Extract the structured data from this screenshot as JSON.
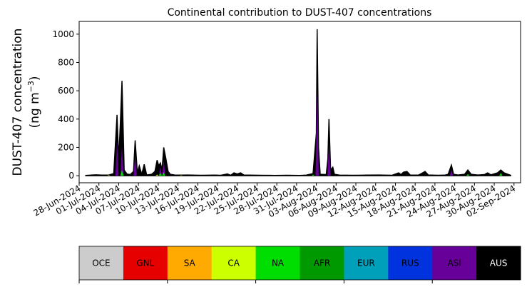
{
  "chart_data": {
    "type": "area",
    "title": "Continental contribution to DUST-407 concentrations",
    "ylabel_line1": "DUST-407 concentration",
    "ylabel_line2_prefix": "(ng m",
    "ylabel_line2_sup": "−3",
    "ylabel_line2_suffix": ")",
    "ylim": [
      -50,
      1090
    ],
    "yticks": [
      0,
      200,
      400,
      600,
      800,
      1000
    ],
    "xlim": [
      "2024-06-28",
      "2024-09-03"
    ],
    "xtick_labels": [
      "28-Jun-2024",
      "01-Jul-2024",
      "04-Jul-2024",
      "07-Jul-2024",
      "10-Jul-2024",
      "13-Jul-2024",
      "16-Jul-2024",
      "19-Jul-2024",
      "22-Jul-2024",
      "25-Jul-2024",
      "28-Jul-2024",
      "31-Jul-2024",
      "03-Aug-2024",
      "06-Aug-2024",
      "09-Aug-2024",
      "12-Aug-2024",
      "15-Aug-2024",
      "18-Aug-2024",
      "21-Aug-2024",
      "24-Aug-2024",
      "27-Aug-2024",
      "30-Aug-2024",
      "02-Sep-2024"
    ],
    "legend_placement": "bottom",
    "categories": [
      "OCE",
      "GNL",
      "SA",
      "CA",
      "NA",
      "AFR",
      "EUR",
      "RUS",
      "ASI",
      "AUS"
    ],
    "colors": {
      "OCE": "#cccccc",
      "GNL": "#e60000",
      "SA": "#ffaa00",
      "CA": "#ccff00",
      "NA": "#00dd00",
      "AFR": "#009900",
      "EUR": "#00a0bb",
      "RUS": "#0033dd",
      "ASI": "#660099",
      "AUS": "#000000"
    },
    "legend_text_colors": {
      "OCE": "#000000",
      "GNL": "#000000",
      "SA": "#000000",
      "CA": "#000000",
      "NA": "#000000",
      "AFR": "#000000",
      "EUR": "#000000",
      "RUS": "#000000",
      "ASI": "#000000",
      "AUS": "#ffffff"
    },
    "total": [
      [
        "2024-06-29 00:00",
        2
      ],
      [
        "2024-06-30 12:00",
        6
      ],
      [
        "2024-07-01 12:00",
        4
      ],
      [
        "2024-07-02 12:00",
        5
      ],
      [
        "2024-07-03 06:00",
        15
      ],
      [
        "2024-07-03 18:00",
        430
      ],
      [
        "2024-07-04 00:00",
        110
      ],
      [
        "2024-07-04 06:00",
        370
      ],
      [
        "2024-07-04 12:00",
        670
      ],
      [
        "2024-07-04 20:00",
        40
      ],
      [
        "2024-07-05 06:00",
        12
      ],
      [
        "2024-07-05 18:00",
        8
      ],
      [
        "2024-07-06 06:00",
        30
      ],
      [
        "2024-07-06 12:00",
        250
      ],
      [
        "2024-07-06 20:00",
        20
      ],
      [
        "2024-07-07 03:00",
        70
      ],
      [
        "2024-07-07 12:00",
        10
      ],
      [
        "2024-07-07 21:00",
        80
      ],
      [
        "2024-07-08 06:00",
        5
      ],
      [
        "2024-07-09 00:00",
        10
      ],
      [
        "2024-07-09 12:00",
        30
      ],
      [
        "2024-07-09 20:00",
        110
      ],
      [
        "2024-07-10 02:00",
        70
      ],
      [
        "2024-07-10 08:00",
        90
      ],
      [
        "2024-07-10 14:00",
        40
      ],
      [
        "2024-07-10 20:00",
        200
      ],
      [
        "2024-07-11 04:00",
        120
      ],
      [
        "2024-07-11 12:00",
        30
      ],
      [
        "2024-07-11 20:00",
        10
      ],
      [
        "2024-07-12 12:00",
        5
      ],
      [
        "2024-07-13 12:00",
        4
      ],
      [
        "2024-07-14 12:00",
        5
      ],
      [
        "2024-07-16 12:00",
        3
      ],
      [
        "2024-07-18 12:00",
        4
      ],
      [
        "2024-07-19 12:00",
        3
      ],
      [
        "2024-07-20 12:00",
        12
      ],
      [
        "2024-07-21 00:00",
        3
      ],
      [
        "2024-07-21 12:00",
        20
      ],
      [
        "2024-07-22 00:00",
        12
      ],
      [
        "2024-07-22 12:00",
        20
      ],
      [
        "2024-07-23 00:00",
        5
      ],
      [
        "2024-07-25 12:00",
        3
      ],
      [
        "2024-07-27 12:00",
        2
      ],
      [
        "2024-07-29 12:00",
        3
      ],
      [
        "2024-07-31 12:00",
        2
      ],
      [
        "2024-08-01 12:00",
        4
      ],
      [
        "2024-08-02 12:00",
        15
      ],
      [
        "2024-08-03 00:00",
        300
      ],
      [
        "2024-08-03 03:00",
        1035
      ],
      [
        "2024-08-03 08:00",
        200
      ],
      [
        "2024-08-03 14:00",
        10
      ],
      [
        "2024-08-04 12:00",
        8
      ],
      [
        "2024-08-04 18:00",
        120
      ],
      [
        "2024-08-04 22:00",
        400
      ],
      [
        "2024-08-05 04:00",
        40
      ],
      [
        "2024-08-05 12:00",
        60
      ],
      [
        "2024-08-05 18:00",
        10
      ],
      [
        "2024-08-06 12:00",
        4
      ],
      [
        "2024-08-08 12:00",
        3
      ],
      [
        "2024-08-10 12:00",
        4
      ],
      [
        "2024-08-12 12:00",
        5
      ],
      [
        "2024-08-14 12:00",
        3
      ],
      [
        "2024-08-15 12:00",
        20
      ],
      [
        "2024-08-15 20:00",
        8
      ],
      [
        "2024-08-16 06:00",
        25
      ],
      [
        "2024-08-16 18:00",
        30
      ],
      [
        "2024-08-17 06:00",
        5
      ],
      [
        "2024-08-18 12:00",
        4
      ],
      [
        "2024-08-19 12:00",
        30
      ],
      [
        "2024-08-20 00:00",
        5
      ],
      [
        "2024-08-21 12:00",
        3
      ],
      [
        "2024-08-22 12:00",
        4
      ],
      [
        "2024-08-23 00:00",
        10
      ],
      [
        "2024-08-23 12:00",
        75
      ],
      [
        "2024-08-23 20:00",
        10
      ],
      [
        "2024-08-24 12:00",
        5
      ],
      [
        "2024-08-25 12:00",
        10
      ],
      [
        "2024-08-26 00:00",
        40
      ],
      [
        "2024-08-26 12:00",
        10
      ],
      [
        "2024-08-27 12:00",
        5
      ],
      [
        "2024-08-28 12:00",
        8
      ],
      [
        "2024-08-29 00:00",
        20
      ],
      [
        "2024-08-29 12:00",
        6
      ],
      [
        "2024-08-30 12:00",
        20
      ],
      [
        "2024-08-31 00:00",
        40
      ],
      [
        "2024-08-31 12:00",
        20
      ],
      [
        "2024-09-01 12:00",
        3
      ]
    ],
    "components": [
      {
        "name": "ASI",
        "points": [
          [
            "2024-07-03 18:00",
            250
          ],
          [
            "2024-07-04 12:00",
            210
          ],
          [
            "2024-07-06 12:00",
            150
          ],
          [
            "2024-07-10 08:00",
            60
          ],
          [
            "2024-07-10 20:00",
            110
          ],
          [
            "2024-08-03 03:00",
            600
          ],
          [
            "2024-08-04 22:00",
            230
          ],
          [
            "2024-08-23 12:00",
            40
          ],
          [
            "2024-08-31 00:00",
            20
          ]
        ]
      },
      {
        "name": "NA",
        "points": [
          [
            "2024-07-04 12:00",
            40
          ],
          [
            "2024-07-10 08:00",
            20
          ],
          [
            "2024-07-10 20:00",
            25
          ],
          [
            "2024-08-02 12:00",
            8
          ],
          [
            "2024-08-26 00:00",
            12
          ],
          [
            "2024-08-31 00:00",
            18
          ]
        ]
      },
      {
        "name": "CA",
        "points": [
          [
            "2024-07-02 12:00",
            4
          ],
          [
            "2024-07-09 20:00",
            8
          ],
          [
            "2024-07-13 12:00",
            3
          ]
        ]
      }
    ]
  }
}
